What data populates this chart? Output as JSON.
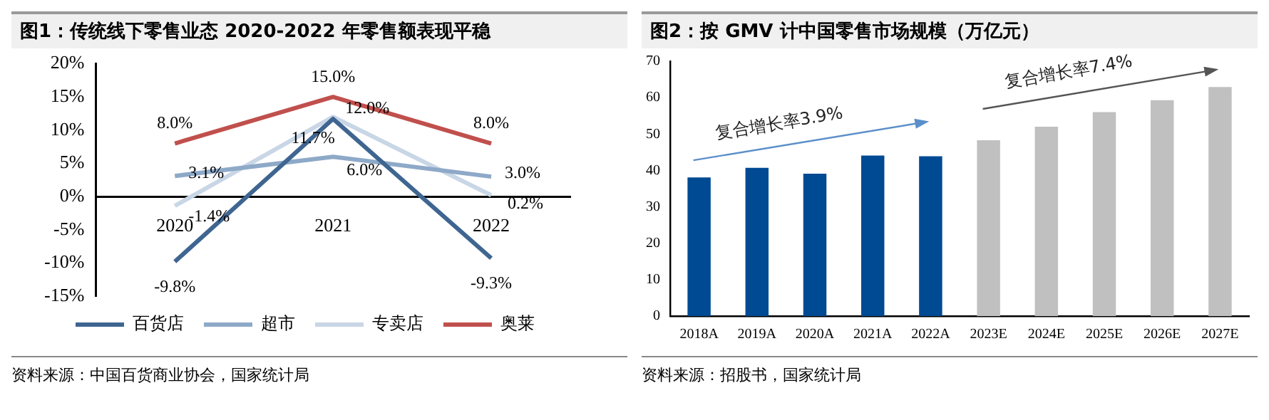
{
  "chart_data": [
    {
      "type": "line",
      "title": "图1：传统线下零售业态 2020-2022 年零售额表现平稳",
      "categories": [
        "2020",
        "2021",
        "2022"
      ],
      "series": [
        {
          "name": "百货店",
          "color": "#3f6591",
          "values": [
            -9.8,
            11.7,
            -9.3
          ],
          "value_labels": [
            "-9.8%",
            "11.7%",
            "-9.3%"
          ]
        },
        {
          "name": "超市",
          "color": "#8ea9c8",
          "values": [
            3.1,
            6.0,
            3.0
          ],
          "value_labels": [
            "3.1%",
            "6.0%",
            "3.0%"
          ]
        },
        {
          "name": "专卖店",
          "color": "#c8d6e6",
          "values": [
            -1.4,
            12.0,
            0.2
          ],
          "value_labels": [
            "-1.4%",
            "12.0%",
            "0.2%"
          ]
        },
        {
          "name": "奥莱",
          "color": "#c0504d",
          "values": [
            8.0,
            15.0,
            8.0
          ],
          "value_labels": [
            "8.0%",
            "15.0%",
            "8.0%"
          ]
        }
      ],
      "ylim": [
        -15,
        20
      ],
      "yticks": [
        {
          "value": -15,
          "label": "-15%"
        },
        {
          "value": -10,
          "label": "-10%"
        },
        {
          "value": -5,
          "label": "-5%"
        },
        {
          "value": 0,
          "label": "0%"
        },
        {
          "value": 5,
          "label": "5%"
        },
        {
          "value": 10,
          "label": "10%"
        },
        {
          "value": 15,
          "label": "15%"
        },
        {
          "value": 20,
          "label": "20%"
        }
      ],
      "grid": false,
      "legend": "bottom",
      "annotations": [
        "资料来源：中国百货商业协会，国家统计局"
      ]
    },
    {
      "type": "bar",
      "title": "图2：按 GMV 计中国零售市场规模（万亿元）",
      "categories": [
        "2018A",
        "2019A",
        "2020A",
        "2021A",
        "2022A",
        "2023E",
        "2024E",
        "2025E",
        "2026E",
        "2027E"
      ],
      "values": [
        38.1,
        40.7,
        39.1,
        44.1,
        43.9,
        48.3,
        52.0,
        56.0,
        59.3,
        62.9
      ],
      "colors": [
        "#004a93",
        "#004a93",
        "#004a93",
        "#004a93",
        "#004a93",
        "#c0c0c0",
        "#c0c0c0",
        "#c0c0c0",
        "#c0c0c0",
        "#c0c0c0"
      ],
      "ylim": [
        0,
        70
      ],
      "yticks": [
        0,
        10,
        20,
        30,
        40,
        50,
        60,
        70
      ],
      "grid": false,
      "annotations": [
        "复合增长率3.9%",
        "复合增长率7.4%",
        "资料来源：招股书，国家统计局"
      ]
    }
  ]
}
